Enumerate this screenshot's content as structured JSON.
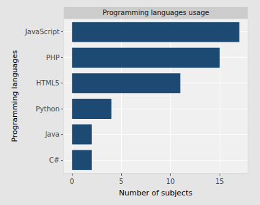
{
  "chart_data": {
    "type": "bar",
    "orientation": "horizontal",
    "title": "Programming languages usage",
    "x_label": "Number of subjects",
    "y_label": "Programming languages",
    "categories": [
      "JavaScript",
      "PHP",
      "HTML5",
      "Python",
      "Java",
      "C#"
    ],
    "values": [
      17,
      15,
      11,
      4,
      2,
      2
    ],
    "color": "#1c4a73",
    "xlim": [
      -0.85,
      17.85
    ],
    "xticks": [
      0,
      5,
      10,
      15
    ],
    "grid": true
  }
}
